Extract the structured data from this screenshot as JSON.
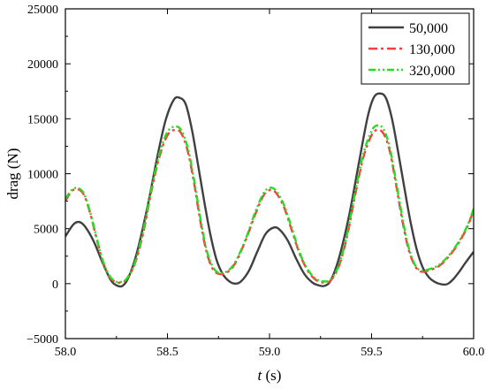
{
  "chart_data": {
    "type": "line",
    "title": "",
    "xlabel_italic": "t",
    "xlabel_rest": " (s)",
    "ylabel": "drag (N)",
    "xlim": [
      58.0,
      60.0
    ],
    "ylim": [
      -5000,
      25000
    ],
    "x_ticks": [
      58.0,
      58.5,
      59.0,
      59.5,
      60.0
    ],
    "x_tick_labels": [
      "58.0",
      "58.5",
      "59.0",
      "59.5",
      "60.0"
    ],
    "y_ticks": [
      -5000,
      0,
      5000,
      10000,
      15000,
      20000,
      25000
    ],
    "y_tick_labels": [
      "−5000",
      "0",
      "5000",
      "10000",
      "15000",
      "20000",
      "25000"
    ],
    "grid": false,
    "legend_position": "top-right",
    "series": [
      {
        "name": "50,000",
        "color": "#404040",
        "dash": "solid",
        "points": [
          [
            58.0,
            4300
          ],
          [
            58.04,
            5400
          ],
          [
            58.07,
            5600
          ],
          [
            58.1,
            5100
          ],
          [
            58.14,
            3800
          ],
          [
            58.18,
            2000
          ],
          [
            58.22,
            400
          ],
          [
            58.25,
            -150
          ],
          [
            58.28,
            -200
          ],
          [
            58.31,
            600
          ],
          [
            58.35,
            2800
          ],
          [
            58.4,
            6800
          ],
          [
            58.45,
            11500
          ],
          [
            58.49,
            14800
          ],
          [
            58.53,
            16700
          ],
          [
            58.56,
            16900
          ],
          [
            58.59,
            16300
          ],
          [
            58.62,
            14000
          ],
          [
            58.65,
            10800
          ],
          [
            58.68,
            7500
          ],
          [
            58.71,
            4500
          ],
          [
            58.74,
            2200
          ],
          [
            58.77,
            900
          ],
          [
            58.8,
            250
          ],
          [
            58.83,
            0
          ],
          [
            58.86,
            200
          ],
          [
            58.9,
            1200
          ],
          [
            58.94,
            2900
          ],
          [
            58.98,
            4500
          ],
          [
            59.02,
            5100
          ],
          [
            59.05,
            4900
          ],
          [
            59.09,
            3900
          ],
          [
            59.13,
            2300
          ],
          [
            59.17,
            900
          ],
          [
            59.21,
            100
          ],
          [
            59.24,
            -150
          ],
          [
            59.27,
            -200
          ],
          [
            59.3,
            300
          ],
          [
            59.34,
            2300
          ],
          [
            59.39,
            6200
          ],
          [
            59.44,
            11200
          ],
          [
            59.48,
            15100
          ],
          [
            59.51,
            16900
          ],
          [
            59.54,
            17300
          ],
          [
            59.57,
            16900
          ],
          [
            59.6,
            15000
          ],
          [
            59.63,
            12000
          ],
          [
            59.66,
            8800
          ],
          [
            59.69,
            5700
          ],
          [
            59.72,
            3200
          ],
          [
            59.75,
            1500
          ],
          [
            59.78,
            600
          ],
          [
            59.81,
            150
          ],
          [
            59.84,
            -50
          ],
          [
            59.87,
            -50
          ],
          [
            59.9,
            400
          ],
          [
            59.93,
            1100
          ],
          [
            59.96,
            1900
          ],
          [
            60.0,
            2900
          ]
        ]
      },
      {
        "name": "130,000",
        "color": "#ff3b3b",
        "dash": "dashdot",
        "points": [
          [
            58.0,
            7500
          ],
          [
            58.03,
            8400
          ],
          [
            58.06,
            8600
          ],
          [
            58.09,
            8100
          ],
          [
            58.12,
            6500
          ],
          [
            58.15,
            4300
          ],
          [
            58.18,
            2200
          ],
          [
            58.21,
            800
          ],
          [
            58.24,
            200
          ],
          [
            58.27,
            100
          ],
          [
            58.3,
            400
          ],
          [
            58.34,
            1800
          ],
          [
            58.38,
            4500
          ],
          [
            58.42,
            8300
          ],
          [
            58.46,
            11500
          ],
          [
            58.5,
            13500
          ],
          [
            58.54,
            14000
          ],
          [
            58.57,
            13600
          ],
          [
            58.6,
            12000
          ],
          [
            58.63,
            9200
          ],
          [
            58.66,
            5800
          ],
          [
            58.69,
            3000
          ],
          [
            58.72,
            1400
          ],
          [
            58.75,
            900
          ],
          [
            58.79,
            1000
          ],
          [
            58.83,
            1800
          ],
          [
            58.88,
            3800
          ],
          [
            58.93,
            6300
          ],
          [
            58.97,
            8000
          ],
          [
            59.0,
            8500
          ],
          [
            59.03,
            8300
          ],
          [
            59.07,
            7000
          ],
          [
            59.11,
            4800
          ],
          [
            59.15,
            2600
          ],
          [
            59.19,
            1100
          ],
          [
            59.23,
            300
          ],
          [
            59.27,
            100
          ],
          [
            59.3,
            300
          ],
          [
            59.34,
            1600
          ],
          [
            59.38,
            4300
          ],
          [
            59.42,
            8100
          ],
          [
            59.46,
            11500
          ],
          [
            59.5,
            13500
          ],
          [
            59.53,
            14000
          ],
          [
            59.56,
            13600
          ],
          [
            59.59,
            12000
          ],
          [
            59.62,
            9000
          ],
          [
            59.65,
            5800
          ],
          [
            59.68,
            3200
          ],
          [
            59.71,
            1700
          ],
          [
            59.74,
            1100
          ],
          [
            59.78,
            1200
          ],
          [
            59.83,
            1600
          ],
          [
            59.88,
            2500
          ],
          [
            59.93,
            3800
          ],
          [
            59.97,
            5200
          ],
          [
            60.0,
            6700
          ]
        ]
      },
      {
        "name": "320,000",
        "color": "#22dd22",
        "dash": "dashdotdot",
        "points": [
          [
            58.0,
            7700
          ],
          [
            58.03,
            8500
          ],
          [
            58.06,
            8700
          ],
          [
            58.09,
            8200
          ],
          [
            58.12,
            6600
          ],
          [
            58.15,
            4400
          ],
          [
            58.18,
            2300
          ],
          [
            58.21,
            900
          ],
          [
            58.24,
            250
          ],
          [
            58.27,
            150
          ],
          [
            58.3,
            450
          ],
          [
            58.34,
            1900
          ],
          [
            58.38,
            4700
          ],
          [
            58.42,
            8500
          ],
          [
            58.46,
            11800
          ],
          [
            58.5,
            13800
          ],
          [
            58.54,
            14300
          ],
          [
            58.57,
            13900
          ],
          [
            58.6,
            12300
          ],
          [
            58.63,
            9500
          ],
          [
            58.66,
            6100
          ],
          [
            58.69,
            3200
          ],
          [
            58.72,
            1600
          ],
          [
            58.75,
            1000
          ],
          [
            58.79,
            1100
          ],
          [
            58.83,
            1900
          ],
          [
            58.88,
            3900
          ],
          [
            58.93,
            6500
          ],
          [
            58.97,
            8200
          ],
          [
            59.0,
            8700
          ],
          [
            59.03,
            8500
          ],
          [
            59.07,
            7200
          ],
          [
            59.11,
            5000
          ],
          [
            59.15,
            2700
          ],
          [
            59.19,
            1200
          ],
          [
            59.23,
            400
          ],
          [
            59.27,
            200
          ],
          [
            59.3,
            400
          ],
          [
            59.34,
            1700
          ],
          [
            59.38,
            4500
          ],
          [
            59.42,
            8400
          ],
          [
            59.46,
            11800
          ],
          [
            59.5,
            13900
          ],
          [
            59.53,
            14400
          ],
          [
            59.56,
            14000
          ],
          [
            59.59,
            12300
          ],
          [
            59.62,
            9300
          ],
          [
            59.65,
            6100
          ],
          [
            59.68,
            3400
          ],
          [
            59.71,
            1800
          ],
          [
            59.74,
            1200
          ],
          [
            59.78,
            1300
          ],
          [
            59.83,
            1700
          ],
          [
            59.88,
            2600
          ],
          [
            59.93,
            3900
          ],
          [
            59.97,
            5300
          ],
          [
            60.0,
            6800
          ]
        ]
      }
    ]
  }
}
